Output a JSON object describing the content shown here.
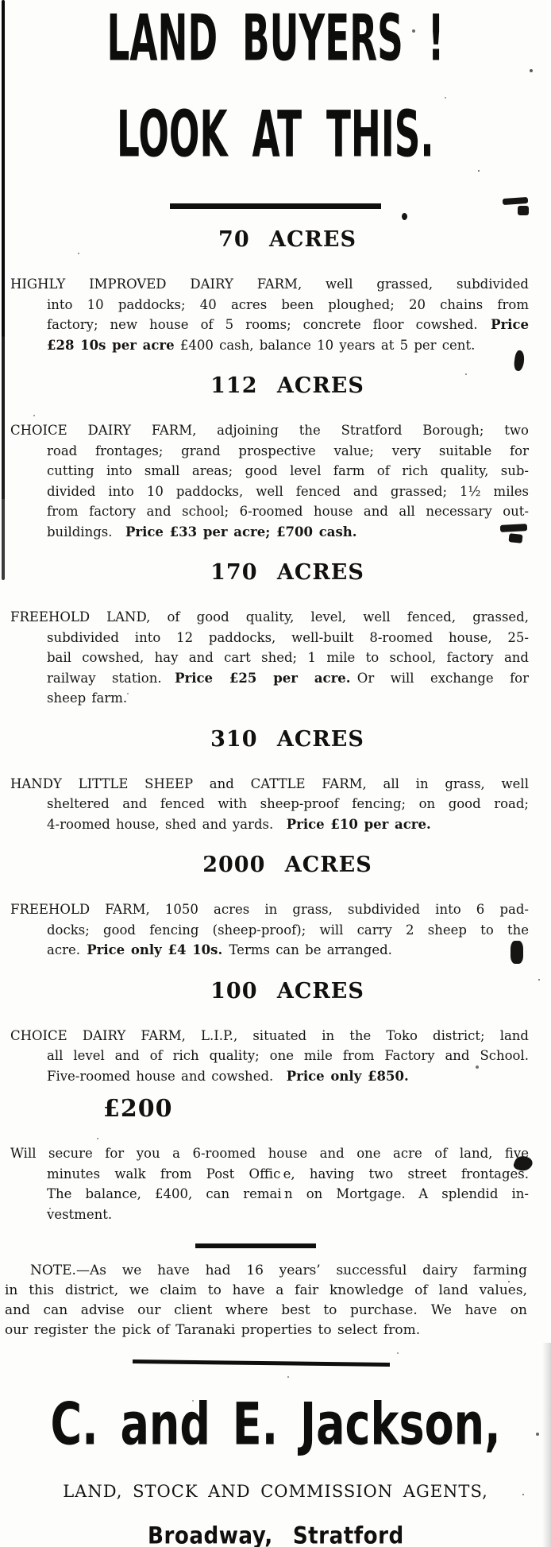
{
  "headline": {
    "line1": "LAND BUYERS !",
    "line2": "LOOK AT THIS."
  },
  "listings": [
    {
      "heading": "70 ACRES",
      "lines": [
        "HIGHLY IMPROVED DAIRY FARM, well grassed, subdivided",
        "into 10 paddocks; 40 acres been ploughed; 20 chains from",
        "factory; new house of 5 rooms; concrete floor cowshed. **Price**",
        "**£28 10s per acre** £400 cash, balance 10 years at 5 per cent."
      ]
    },
    {
      "heading": "112 ACRES",
      "lines": [
        "CHOICE DAIRY FARM, adjoining the Stratford Borough; two",
        "road frontages; grand prospective value; very suitable for",
        "cutting into small areas; good level farm of rich quality, sub-",
        "divided into 10 paddocks, well fenced and grassed; 1½ miles",
        "from factory and school; 6-roomed house and all necessary out-",
        "buildings. **Price £33 per acre; £700 cash.**"
      ]
    },
    {
      "heading": "170 ACRES",
      "lines": [
        "FREEHOLD LAND, of good quality, level, well fenced, grassed,",
        "subdivided into 12 paddocks, well-built 8-roomed house, 25-",
        "bail cowshed, hay and cart shed; 1 mile to school, factory and",
        "railway station. **Price £25 per acre.** Or will exchange for",
        "sheep farm."
      ]
    },
    {
      "heading": "310 ACRES",
      "lines": [
        "HANDY LITTLE SHEEP and CATTLE FARM, all in grass, well",
        "sheltered and fenced with sheep-proof fencing; on good road;",
        "4-roomed house, shed and yards. **Price £10 per acre.**"
      ]
    },
    {
      "heading": "2000 ACRES",
      "lines": [
        "FREEHOLD FARM, 1050 acres in grass, subdivided into 6 pad-",
        "docks; good fencing (sheep-proof); will carry 2 sheep to the",
        "acre. **Price only £4 10s.** Terms can be arranged."
      ]
    },
    {
      "heading": "100 ACRES",
      "lines": [
        "CHOICE DAIRY FARM, L.I.P., situated in the Toko district; land",
        "all level and of rich quality; one mile from Factory and School.",
        "Five-roomed house and cowshed. **Price only £850.**"
      ]
    },
    {
      "heading": "£200",
      "heading_align": "left",
      "lines": [
        "Will secure for you a 6-roomed house and one acre of land, five",
        "minutes walk from Post Offic e, having two street frontages.",
        "The balance, £400, can remai n on Mortgage. A splendid in-",
        "vestment."
      ]
    }
  ],
  "note": {
    "lines": [
      "NOTE.—As we have had 16 years’ successful dairy farming",
      "in this district, we claim to have a fair knowledge of land values,",
      "and can advise our client where best to purchase. We have on",
      "our register the pick of Taranaki properties to select from."
    ]
  },
  "signature": {
    "name": "C. and E. Jackson,",
    "role": "LAND, STOCK AND COMMISSION AGENTS,",
    "address": "Broadway, Stratford"
  },
  "colors": {
    "ink": "#161514",
    "paper": "#fdfdfc"
  }
}
